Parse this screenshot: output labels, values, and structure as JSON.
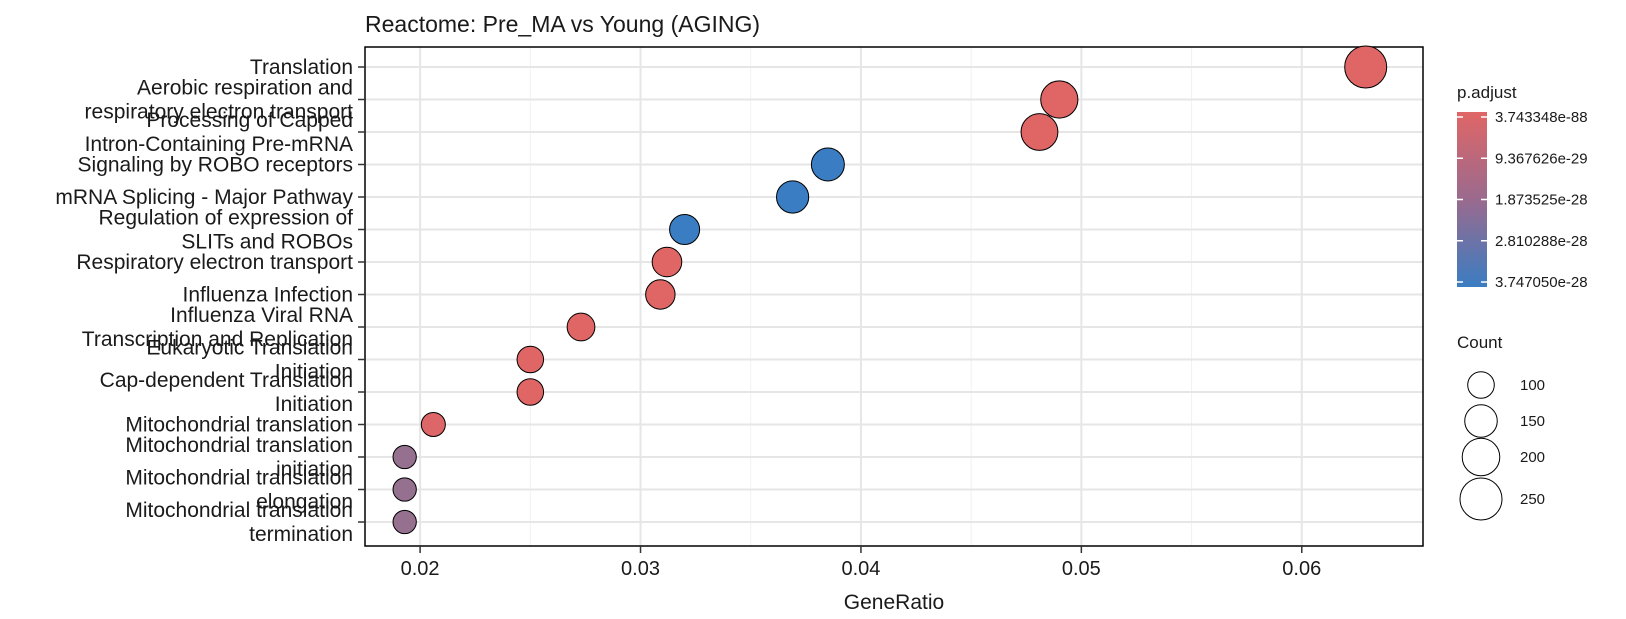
{
  "chart_data": {
    "type": "scatter",
    "title": "Reactome: Pre_MA vs Young (AGING)",
    "xlabel": "GeneRatio",
    "ylabel": "",
    "xlim": [
      0.0175,
      0.0655
    ],
    "xticks": [
      0.02,
      0.03,
      0.04,
      0.05,
      0.06
    ],
    "xtick_labels": [
      "0.02",
      "0.03",
      "0.04",
      "0.05",
      "0.06"
    ],
    "grid": true,
    "legend_position": "right",
    "categories": [
      "Translation",
      "Aerobic respiration and respiratory electron transport",
      "Processing of Capped Intron-Containing Pre-mRNA",
      "Signaling by ROBO receptors",
      "mRNA Splicing - Major Pathway",
      "Regulation of expression of SLITs and ROBOs",
      "Respiratory electron transport",
      "Influenza Infection",
      "Influenza Viral RNA Transcription and Replication",
      "Eukaryotic Translation Initiation",
      "Cap-dependent Translation Initiation",
      "Mitochondrial translation",
      "Mitochondrial translation initiation",
      "Mitochondrial translation elongation",
      "Mitochondrial translation termination"
    ],
    "category_lines": [
      [
        "Translation"
      ],
      [
        "Aerobic respiration and",
        "respiratory electron transport"
      ],
      [
        "Processing of Capped",
        "Intron-Containing Pre-mRNA"
      ],
      [
        "Signaling by ROBO receptors"
      ],
      [
        "mRNA Splicing - Major Pathway"
      ],
      [
        "Regulation of expression of",
        "SLITs and ROBOs"
      ],
      [
        "Respiratory electron transport"
      ],
      [
        "Influenza Infection"
      ],
      [
        "Influenza Viral RNA",
        "Transcription and Replication"
      ],
      [
        "Eukaryotic Translation",
        "Initiation"
      ],
      [
        "Cap-dependent Translation",
        "Initiation"
      ],
      [
        "Mitochondrial translation"
      ],
      [
        "Mitochondrial translation",
        "initiation"
      ],
      [
        "Mitochondrial translation",
        "elongation"
      ],
      [
        "Mitochondrial translation",
        "termination"
      ]
    ],
    "points": [
      {
        "term": "Translation",
        "gene_ratio": 0.0629,
        "count": 250,
        "p_adjust_level": 0.0
      },
      {
        "term": "Aerobic respiration and respiratory electron transport",
        "gene_ratio": 0.049,
        "count": 196,
        "p_adjust_level": 0.0
      },
      {
        "term": "Processing of Capped Intron-Containing Pre-mRNA",
        "gene_ratio": 0.0481,
        "count": 192,
        "p_adjust_level": 0.0
      },
      {
        "term": "Signaling by ROBO receptors",
        "gene_ratio": 0.0385,
        "count": 154,
        "p_adjust_level": 1.0
      },
      {
        "term": "mRNA Splicing - Major Pathway",
        "gene_ratio": 0.0369,
        "count": 147,
        "p_adjust_level": 1.0
      },
      {
        "term": "Regulation of expression of SLITs and ROBOs",
        "gene_ratio": 0.032,
        "count": 128,
        "p_adjust_level": 1.0
      },
      {
        "term": "Respiratory electron transport",
        "gene_ratio": 0.0312,
        "count": 124,
        "p_adjust_level": 0.0
      },
      {
        "term": "Influenza Infection",
        "gene_ratio": 0.0309,
        "count": 123,
        "p_adjust_level": 0.0
      },
      {
        "term": "Influenza Viral RNA Transcription and Replication",
        "gene_ratio": 0.0273,
        "count": 109,
        "p_adjust_level": 0.0
      },
      {
        "term": "Eukaryotic Translation Initiation",
        "gene_ratio": 0.025,
        "count": 100,
        "p_adjust_level": 0.0
      },
      {
        "term": "Cap-dependent Translation Initiation",
        "gene_ratio": 0.025,
        "count": 100,
        "p_adjust_level": 0.0
      },
      {
        "term": "Mitochondrial translation",
        "gene_ratio": 0.0206,
        "count": 82,
        "p_adjust_level": 0.02
      },
      {
        "term": "Mitochondrial translation initiation",
        "gene_ratio": 0.0193,
        "count": 77,
        "p_adjust_level": 0.45
      },
      {
        "term": "Mitochondrial translation elongation",
        "gene_ratio": 0.0193,
        "count": 77,
        "p_adjust_level": 0.45
      },
      {
        "term": "Mitochondrial translation termination",
        "gene_ratio": 0.0193,
        "count": 77,
        "p_adjust_level": 0.45
      }
    ],
    "legend": {
      "color": {
        "title": "p.adjust",
        "labels": [
          "3.743348e-88",
          "9.367626e-29",
          "1.873525e-28",
          "2.810288e-28",
          "3.747050e-28"
        ],
        "low_color": "#E06666",
        "high_color": "#3A7DC2"
      },
      "size": {
        "title": "Count",
        "labels": [
          "100",
          "150",
          "200",
          "250"
        ],
        "values": [
          100,
          150,
          200,
          250
        ]
      }
    }
  }
}
